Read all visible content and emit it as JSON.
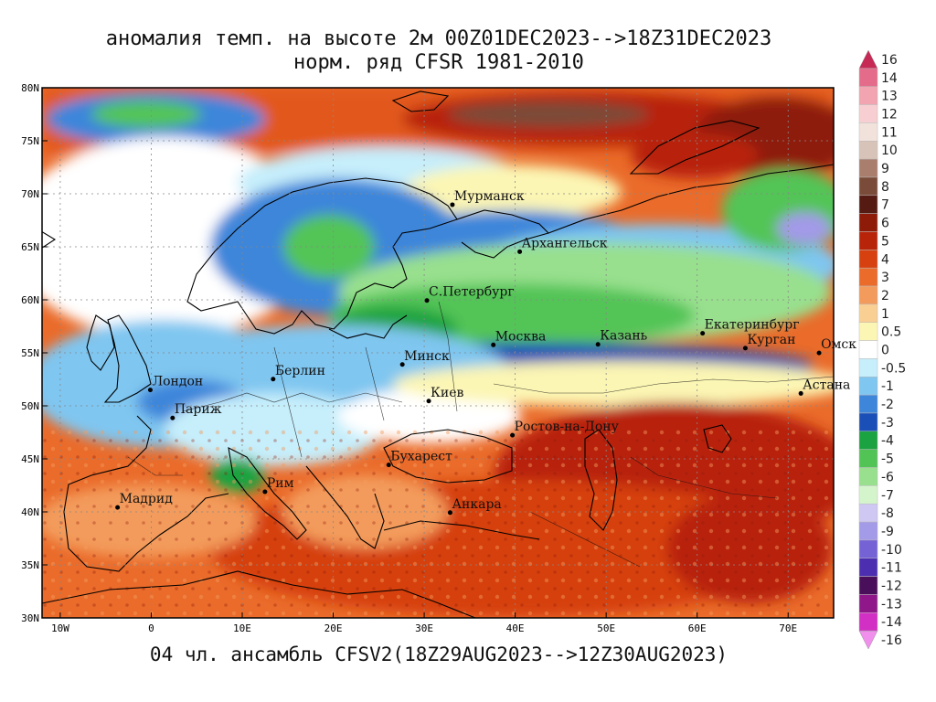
{
  "title_line1": "аномалия темп. на высоте 2м 00Z01DEC2023-->18Z31DEC2023",
  "title_line2": "норм. ряд CFSR 1981-2010",
  "footer": "04 чл. ансамбль CFSV2(18Z29AUG2023-->12Z30AUG2023)",
  "map": {
    "lon_range": [
      -12,
      75
    ],
    "lat_range": [
      30,
      80
    ],
    "lon_ticks": [
      "10W",
      "0",
      "10E",
      "20E",
      "30E",
      "40E",
      "50E",
      "60E",
      "70E"
    ],
    "lon_tick_values": [
      -10,
      0,
      10,
      20,
      30,
      40,
      50,
      60,
      70
    ],
    "lat_ticks": [
      "30N",
      "35N",
      "40N",
      "45N",
      "50N",
      "55N",
      "60N",
      "65N",
      "70N",
      "75N",
      "80N"
    ],
    "lat_tick_values": [
      30,
      35,
      40,
      45,
      50,
      55,
      60,
      65,
      70,
      75,
      80
    ],
    "cities": [
      {
        "name": "Мурманск",
        "lon": 33.1,
        "lat": 68.97
      },
      {
        "name": "Архангельск",
        "lon": 40.5,
        "lat": 64.54
      },
      {
        "name": "С.Петербург",
        "lon": 30.3,
        "lat": 59.94
      },
      {
        "name": "Москва",
        "lon": 37.6,
        "lat": 55.75
      },
      {
        "name": "Казань",
        "lon": 49.1,
        "lat": 55.8
      },
      {
        "name": "Екатеринбург",
        "lon": 60.6,
        "lat": 56.84
      },
      {
        "name": "Курган",
        "lon": 65.3,
        "lat": 55.44
      },
      {
        "name": "Омск",
        "lon": 73.4,
        "lat": 54.99
      },
      {
        "name": "Минск",
        "lon": 27.6,
        "lat": 53.9
      },
      {
        "name": "Берлин",
        "lon": 13.4,
        "lat": 52.52
      },
      {
        "name": "Лондон",
        "lon": -0.1,
        "lat": 51.5
      },
      {
        "name": "Париж",
        "lon": 2.35,
        "lat": 48.86
      },
      {
        "name": "Киев",
        "lon": 30.5,
        "lat": 50.45
      },
      {
        "name": "Астана",
        "lon": 71.4,
        "lat": 51.17
      },
      {
        "name": "Ростов-на-Дону",
        "lon": 39.7,
        "lat": 47.23
      },
      {
        "name": "Бухарест",
        "lon": 26.1,
        "lat": 44.43
      },
      {
        "name": "Рим",
        "lon": 12.5,
        "lat": 41.9
      },
      {
        "name": "Мадрид",
        "lon": -3.7,
        "lat": 40.42
      },
      {
        "name": "Анкара",
        "lon": 32.85,
        "lat": 39.93
      }
    ]
  },
  "colorbar": {
    "labels": [
      "16",
      "14",
      "13",
      "12",
      "11",
      "10",
      "9",
      "8",
      "7",
      "6",
      "5",
      "4",
      "3",
      "2",
      "1",
      "0.5",
      "0",
      "-0.5",
      "-1",
      "-2",
      "-3",
      "-4",
      "-5",
      "-6",
      "-7",
      "-8",
      "-9",
      "-10",
      "-11",
      "-12",
      "-13",
      "-14",
      "-16"
    ],
    "colors": [
      "#c62a54",
      "#e46c8a",
      "#f2a4b0",
      "#f7cfd2",
      "#f1e3dc",
      "#d8c3b8",
      "#a97e6c",
      "#7a4b39",
      "#551a12",
      "#8e1a08",
      "#b8240a",
      "#d6410f",
      "#ea6b2a",
      "#f39b5c",
      "#f9cf94",
      "#fcf6b4",
      "#ffffff",
      "#c6eefb",
      "#7fc6f0",
      "#3d86da",
      "#1a4fb8",
      "#1aa340",
      "#52c456",
      "#98e08e",
      "#d4f5cc",
      "#cfc8f2",
      "#a39ae8",
      "#7563d6",
      "#4b2fb0",
      "#4a0f5a",
      "#8f1789",
      "#d22fc4",
      "#f090ec"
    ]
  }
}
